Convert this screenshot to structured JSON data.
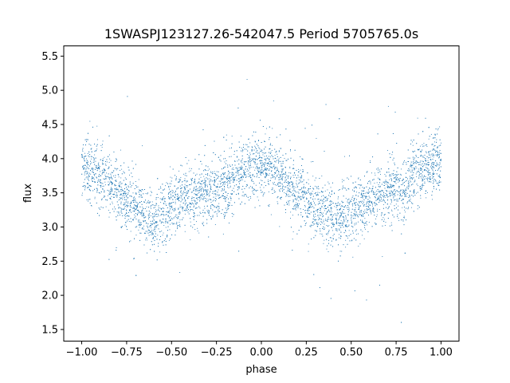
{
  "chart_data": {
    "type": "scatter",
    "title": "1SWASPJ123127.26-542047.5 Period 5705765.0s",
    "xlabel": "phase",
    "ylabel": "flux",
    "xlim": [
      -1.1,
      1.1
    ],
    "ylim": [
      1.33,
      5.65
    ],
    "x_ticks": [
      -1.0,
      -0.75,
      -0.5,
      -0.25,
      0.0,
      0.25,
      0.5,
      0.75,
      1.0
    ],
    "x_tick_labels": [
      "−1.00",
      "−0.75",
      "−0.50",
      "−0.25",
      "0.00",
      "0.25",
      "0.50",
      "0.75",
      "1.00"
    ],
    "y_ticks": [
      1.5,
      2.0,
      2.5,
      3.0,
      3.5,
      4.0,
      4.5,
      5.0,
      5.5
    ],
    "y_tick_labels": [
      "1.5",
      "2.0",
      "2.5",
      "3.0",
      "3.5",
      "4.0",
      "4.5",
      "5.0",
      "5.5"
    ],
    "grid": false,
    "legend": "none",
    "marker_color": "#1f77b4",
    "series": [
      {
        "phase_range": [
          -1.0,
          1.0
        ],
        "mean_flux_profile": {
          "phase": [
            -1.0,
            -0.9,
            -0.8,
            -0.75,
            -0.7,
            -0.6,
            -0.5,
            -0.4,
            -0.3,
            -0.25,
            -0.2,
            -0.1,
            0.0,
            0.1,
            0.2,
            0.25,
            0.3,
            0.4,
            0.5,
            0.6,
            0.7,
            0.75,
            0.8,
            0.9,
            1.0
          ],
          "flux": [
            3.9,
            3.75,
            3.5,
            3.4,
            3.3,
            3.1,
            3.3,
            3.45,
            3.5,
            3.55,
            3.6,
            3.8,
            3.95,
            3.75,
            3.5,
            3.4,
            3.3,
            3.1,
            3.25,
            3.4,
            3.5,
            3.55,
            3.6,
            3.85,
            3.95
          ]
        }
      }
    ]
  }
}
